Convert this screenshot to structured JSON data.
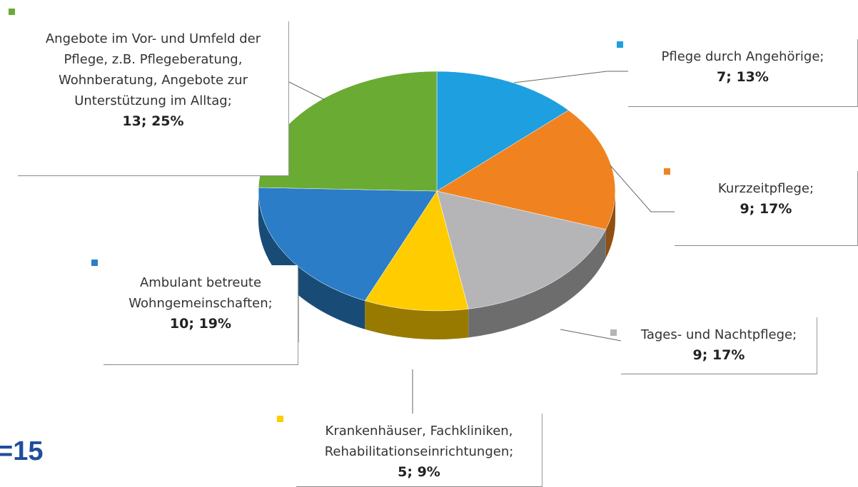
{
  "chart_data": {
    "type": "pie",
    "categories": [
      "Pflege durch Angehörige;",
      "Kurzzeitpflege;",
      "Tages- und Nachtpflege;",
      "Krankenhäuser, Fachkliniken, Rehabilitationseinrichtungen;",
      "Ambulant betreute Wohngemeinschaften;",
      "Angebote im Vor- und Umfeld der Pflege, z.B. Pflegeberatung, Wohnberatung, Angebote zur Unterstützung im Alltag;"
    ],
    "values": [
      7,
      9,
      9,
      5,
      10,
      13
    ],
    "value_labels": [
      "7; 13%",
      "9; 17%",
      "9; 17%",
      "5; 9%",
      "10; 19%",
      "13; 25%"
    ],
    "colors": [
      "#1e9fe0",
      "#f08320",
      "#b5b5b7",
      "#ffcc00",
      "#2a7dc6",
      "#6aab34"
    ],
    "annotation": "=15"
  }
}
